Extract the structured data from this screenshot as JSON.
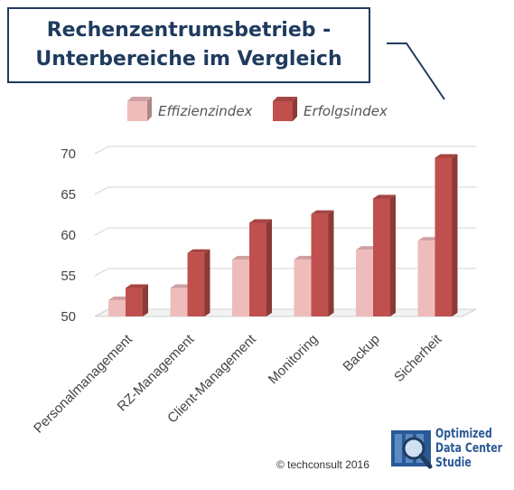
{
  "title": {
    "line1": "Rechenzentrumsbetrieb -",
    "line2": "Unterbereiche im Vergleich"
  },
  "chart_data": {
    "type": "bar",
    "categories": [
      "Personalmanagement",
      "RZ-Management",
      "Client-Management",
      "Monitoring",
      "Backup",
      "Sicherheit"
    ],
    "series": [
      {
        "name": "Effizienzindex",
        "values": [
          52,
          53.5,
          57,
          57,
          58.2,
          59.3
        ],
        "color": "#efbcbc"
      },
      {
        "name": "Erfolgsindex",
        "values": [
          53.5,
          57.8,
          61.5,
          62.6,
          64.5,
          69.5
        ],
        "color": "#c0504d"
      }
    ],
    "yticks": [
      "50",
      "55",
      "60",
      "65",
      "70"
    ],
    "ylim": [
      50,
      70
    ],
    "grid": true,
    "legend_position": "top",
    "three_d": true
  },
  "footer": {
    "copyright": "© techconsult 2016"
  },
  "logo": {
    "line1": "Optimized",
    "line2": "Data Center",
    "line3": "Studie",
    "color": "#2a5a95"
  }
}
